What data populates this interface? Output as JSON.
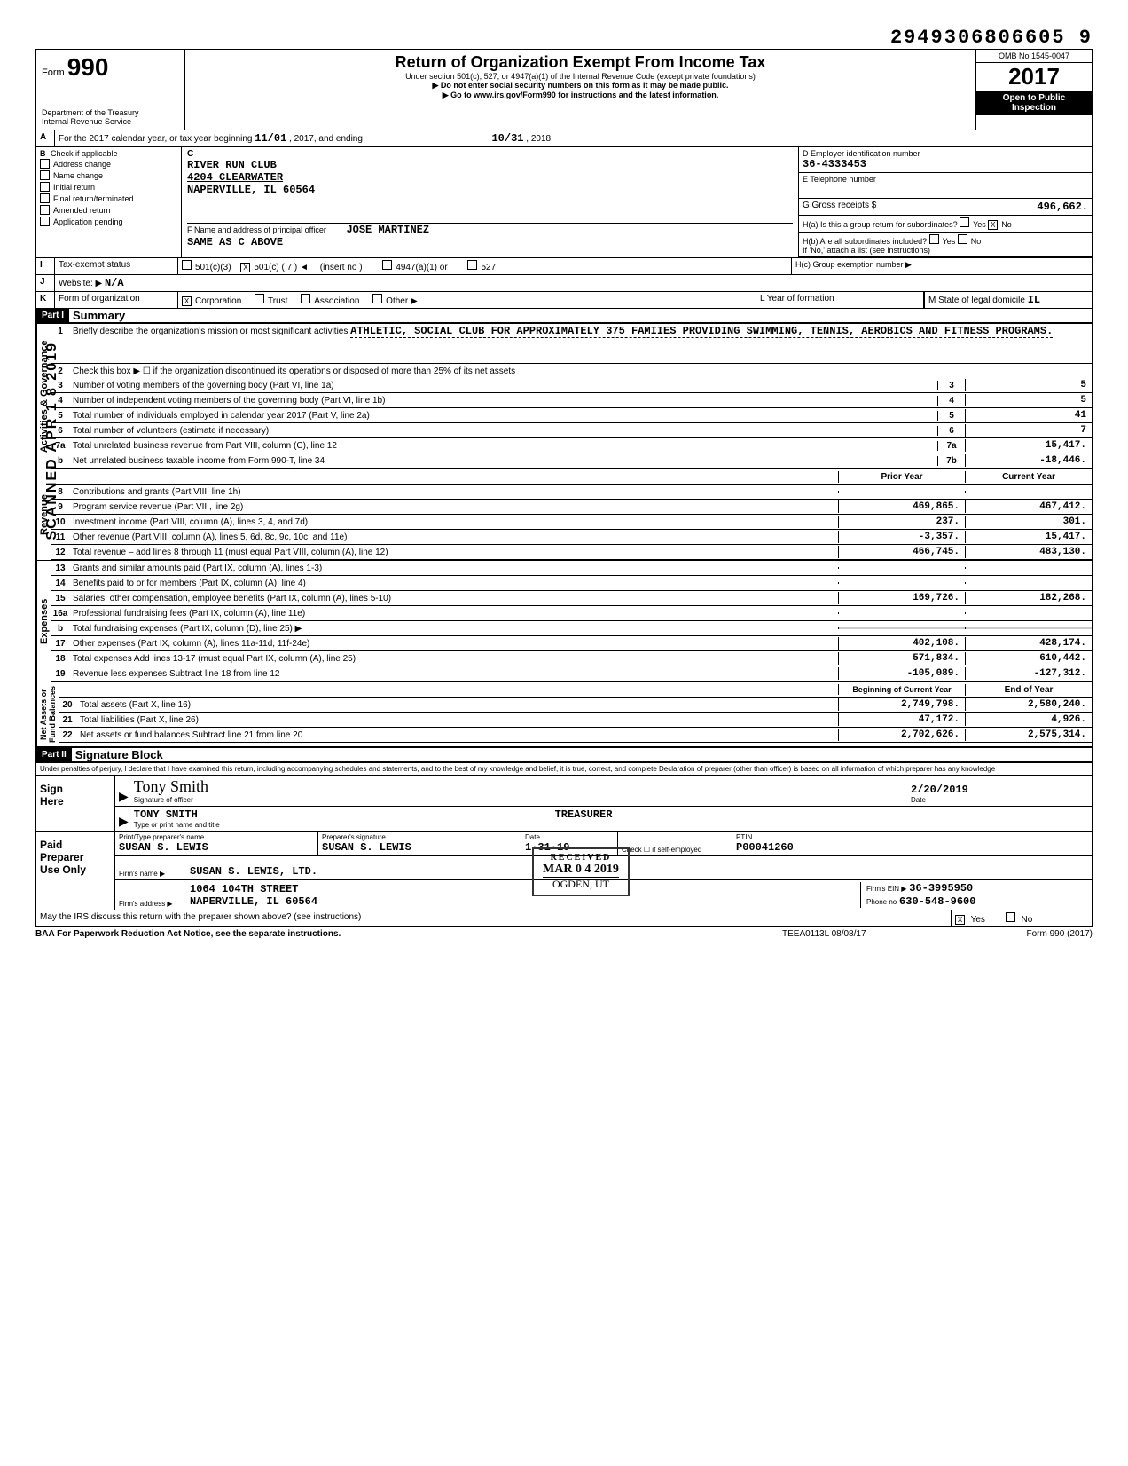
{
  "top_number": "2949306806605 9",
  "header": {
    "form_label": "Form",
    "form_number": "990",
    "dept": "Department of the Treasury\nInternal Revenue Service",
    "title": "Return of Organization Exempt From Income Tax",
    "sub1": "Under section 501(c), 527, or 4947(a)(1) of the Internal Revenue Code (except private foundations)",
    "sub2": "▶ Do not enter social security numbers on this form as it may be made public.",
    "sub3": "▶ Go to www.irs.gov/Form990 for instructions and the latest information.",
    "omb": "OMB No 1545-0047",
    "year": "2017",
    "open": "Open to Public\nInspection"
  },
  "lineA": {
    "text": "For the 2017 calendar year, or tax year beginning",
    "begin": "11/01",
    "mid": ", 2017, and ending",
    "end": "10/31",
    "tail": ", 2018"
  },
  "boxB": {
    "label": "Check if applicable",
    "items": [
      "Address change",
      "Name change",
      "Initial return",
      "Final return/terminated",
      "Amended return",
      "Application pending"
    ]
  },
  "boxC": {
    "letter": "C",
    "name": "RIVER RUN CLUB",
    "addr1": "4204 CLEARWATER",
    "addr2": "NAPERVILLE, IL 60564"
  },
  "boxD": {
    "label": "D Employer identification number",
    "value": "36-4333453"
  },
  "boxE": {
    "label": "E Telephone number",
    "value": ""
  },
  "boxF": {
    "label": "F Name and address of principal officer",
    "name": "JOSE MARTINEZ",
    "addr": "SAME AS C ABOVE"
  },
  "boxG": {
    "label": "G Gross receipts $",
    "value": "496,662."
  },
  "boxH": {
    "ha": "H(a) Is this a group return for subordinates?",
    "hb": "H(b) Are all subordinates included?",
    "hb2": "If 'No,' attach a list (see instructions)",
    "hc": "H(c) Group exemption number ▶",
    "no_checked": "X"
  },
  "lineI": {
    "label": "Tax-exempt status",
    "opts": [
      "501(c)(3)",
      "501(c) ( 7 )",
      "(insert no )",
      "4947(a)(1) or",
      "527"
    ],
    "checked_idx": 1
  },
  "lineJ": {
    "label": "Website: ▶",
    "value": "N/A"
  },
  "lineK": {
    "label": "Form of organization",
    "opts": [
      "Corporation",
      "Trust",
      "Association",
      "Other ▶"
    ],
    "checked_idx": 0,
    "year_label": "L Year of formation",
    "state_label": "M State of legal domicile",
    "state": "IL"
  },
  "part1": {
    "bar": "Part I",
    "title": "Summary"
  },
  "summary": {
    "line1_label": "Briefly describe the organization's mission or most significant activities",
    "line1_text": "ATHLETIC, SOCIAL CLUB FOR APPROXIMATELY 375 FAMIIES PROVIDING SWIMMING, TENNIS, AEROBICS AND FITNESS PROGRAMS.",
    "line2": "Check this box ▶ ☐ if the organization discontinued its operations or disposed of more than 25% of its net assets",
    "rows_gov": [
      {
        "n": "3",
        "t": "Number of voting members of the governing body (Part VI, line 1a)",
        "c": "3",
        "v": "5"
      },
      {
        "n": "4",
        "t": "Number of independent voting members of the governing body (Part VI, line 1b)",
        "c": "4",
        "v": "5"
      },
      {
        "n": "5",
        "t": "Total number of individuals employed in calendar year 2017 (Part V, line 2a)",
        "c": "5",
        "v": "41"
      },
      {
        "n": "6",
        "t": "Total number of volunteers (estimate if necessary)",
        "c": "6",
        "v": "7"
      },
      {
        "n": "7a",
        "t": "Total unrelated business revenue from Part VIII, column (C), line 12",
        "c": "7a",
        "v": "15,417."
      },
      {
        "n": "b",
        "t": "Net unrelated business taxable income from Form 990-T, line 34",
        "c": "7b",
        "v": "-18,446."
      }
    ],
    "col_prior": "Prior Year",
    "col_current": "Current Year",
    "revenue": [
      {
        "n": "8",
        "t": "Contributions and grants (Part VIII, line 1h)",
        "p": "",
        "c": ""
      },
      {
        "n": "9",
        "t": "Program service revenue (Part VIII, line 2g)",
        "p": "469,865.",
        "c": "467,412."
      },
      {
        "n": "10",
        "t": "Investment income (Part VIII, column (A), lines 3, 4, and 7d)",
        "p": "237.",
        "c": "301."
      },
      {
        "n": "11",
        "t": "Other revenue (Part VIII, column (A), lines 5, 6d, 8c, 9c, 10c, and 11e)",
        "p": "-3,357.",
        "c": "15,417."
      },
      {
        "n": "12",
        "t": "Total revenue – add lines 8 through 11 (must equal Part VIII, column (A), line 12)",
        "p": "466,745.",
        "c": "483,130."
      }
    ],
    "expenses": [
      {
        "n": "13",
        "t": "Grants and similar amounts paid (Part IX, column (A), lines 1-3)",
        "p": "",
        "c": ""
      },
      {
        "n": "14",
        "t": "Benefits paid to or for members (Part IX, column (A), line 4)",
        "p": "",
        "c": ""
      },
      {
        "n": "15",
        "t": "Salaries, other compensation, employee benefits (Part IX, column (A), lines 5-10)",
        "p": "169,726.",
        "c": "182,268."
      },
      {
        "n": "16a",
        "t": "Professional fundraising fees (Part IX, column (A), line 11e)",
        "p": "",
        "c": ""
      },
      {
        "n": "b",
        "t": "Total fundraising expenses (Part IX, column (D), line 25) ▶",
        "p": "shade",
        "c": "shade"
      },
      {
        "n": "17",
        "t": "Other expenses (Part IX, column (A), lines 11a-11d, 11f-24e)",
        "p": "402,108.",
        "c": "428,174."
      },
      {
        "n": "18",
        "t": "Total expenses Add lines 13-17 (must equal Part IX, column (A), line 25)",
        "p": "571,834.",
        "c": "610,442."
      },
      {
        "n": "19",
        "t": "Revenue less expenses Subtract line 18 from line 12",
        "p": "-105,089.",
        "c": "-127,312."
      }
    ],
    "col_begin": "Beginning of Current Year",
    "col_end": "End of Year",
    "netassets": [
      {
        "n": "20",
        "t": "Total assets (Part X, line 16)",
        "p": "2,749,798.",
        "c": "2,580,240."
      },
      {
        "n": "21",
        "t": "Total liabilities (Part X, line 26)",
        "p": "47,172.",
        "c": "4,926."
      },
      {
        "n": "22",
        "t": "Net assets or fund balances Subtract line 21 from line 20",
        "p": "2,702,626.",
        "c": "2,575,314."
      }
    ],
    "vlabels": {
      "gov": "Activities & Governance",
      "rev": "Revenue",
      "exp": "Expenses",
      "net": "Net Assets or\nFund Balances"
    }
  },
  "received_stamp": {
    "l1": "RECEIVED",
    "l2": "MAR 0 4 2019",
    "l3": "OGDEN, UT"
  },
  "sideways": "SCANNED APR 1 8 2019",
  "part2": {
    "bar": "Part II",
    "title": "Signature Block"
  },
  "perjury": "Under penalties of perjury, I declare that I have examined this return, including accompanying schedules and statements, and to the best of my knowledge and belief, it is true, correct, and complete Declaration of preparer (other than officer) is based on all information of which preparer has any knowledge",
  "sign": {
    "label": "Sign\nHere",
    "sig_label": "Signature of officer",
    "date_label": "Date",
    "date": "2/20/2019",
    "name": "TONY SMITH",
    "title": "TREASURER",
    "name_label": "Type or print name and title"
  },
  "paid": {
    "label": "Paid\nPreparer\nUse Only",
    "prep_name_label": "Print/Type preparer's name",
    "prep_name": "SUSAN S. LEWIS",
    "prep_sig_label": "Preparer's signature",
    "prep_sig": "SUSAN S. LEWIS",
    "prep_date_label": "Date",
    "prep_date": "1·31·19",
    "check_label": "Check ☐ if self-employed",
    "ptin_label": "PTIN",
    "ptin": "P00041260",
    "firm_name_label": "Firm's name ▶",
    "firm_name": "SUSAN S. LEWIS, LTD.",
    "firm_addr_label": "Firm's address ▶",
    "firm_addr1": "1064 104TH STREET",
    "firm_addr2": "NAPERVILLE, IL 60564",
    "firm_ein_label": "Firm's EIN ▶",
    "firm_ein": "36-3995950",
    "phone_label": "Phone no",
    "phone": "630-548-9600"
  },
  "discuss": {
    "text": "May the IRS discuss this return with the preparer shown above? (see instructions)",
    "yes_checked": "X"
  },
  "footer": {
    "left": "BAA For Paperwork Reduction Act Notice, see the separate instructions.",
    "mid": "TEEA0113L 08/08/17",
    "right": "Form 990 (2017)"
  }
}
